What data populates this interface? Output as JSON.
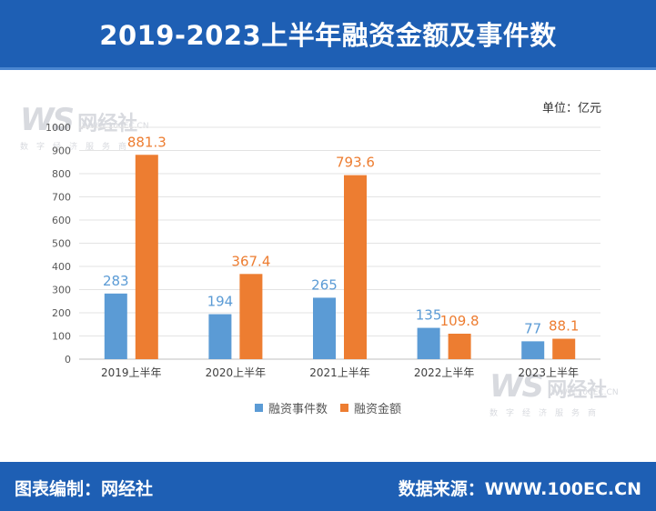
{
  "header": {
    "title": "2019-2023上半年融资金额及事件数"
  },
  "unit_label": "单位：亿元",
  "watermark": {
    "logo": "WS",
    "name": "网经社",
    "url": "WWW.100EC.CN",
    "tagline": "数字经济服务商"
  },
  "footer": {
    "left": "图表编制：网经社",
    "right": "数据来源：WWW.100EC.CN"
  },
  "colors": {
    "header": "#1e5fb4",
    "series1": "#5b9bd5",
    "series2": "#ed7d31"
  },
  "chart_data": {
    "type": "bar",
    "categories": [
      "2019上半年",
      "2020上半年",
      "2021上半年",
      "2022上半年",
      "2023上半年"
    ],
    "series": [
      {
        "name": "融资事件数",
        "values": [
          283,
          194,
          265,
          135,
          77
        ],
        "labels": [
          "283",
          "194",
          "265",
          "135",
          "77"
        ],
        "color": "#5b9bd5"
      },
      {
        "name": "融资金额",
        "values": [
          881.3,
          367.4,
          793.6,
          109.8,
          88.1
        ],
        "labels": [
          "881.3",
          "367.4",
          "793.6",
          "109.8",
          "88.1"
        ],
        "color": "#ed7d31"
      }
    ],
    "yticks": [
      "0",
      "100",
      "200",
      "300",
      "400",
      "500",
      "600",
      "700",
      "800",
      "900",
      "1000"
    ],
    "ylim": [
      0,
      1000
    ],
    "grid": true,
    "legend": "bottom"
  }
}
